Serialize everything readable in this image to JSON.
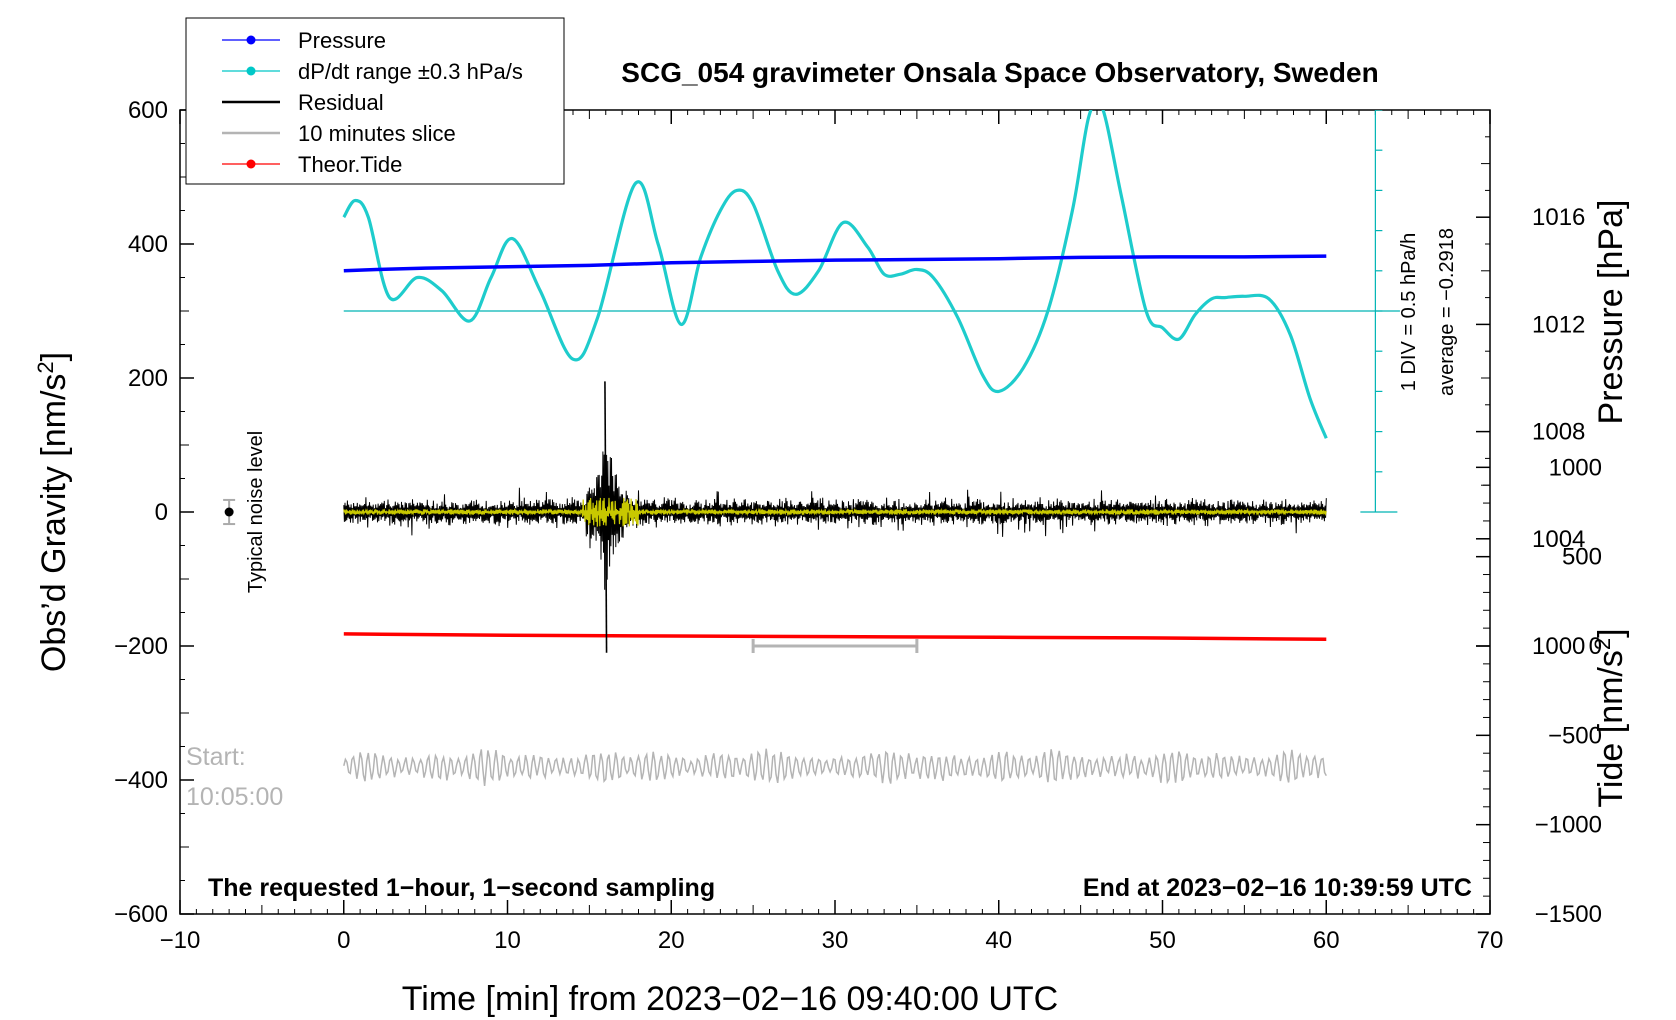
{
  "chart_data": {
    "type": "line",
    "title": "SCG_054 gravimeter Onsala Space Observatory, Sweden",
    "xlabel": "Time [min] from 2023−02−16 09:40:00 UTC",
    "xlim": [
      -10,
      70
    ],
    "xticks": [
      -10,
      0,
      10,
      20,
      30,
      40,
      50,
      60,
      70
    ],
    "xtick_labels": [
      "−10",
      "0",
      "10",
      "20",
      "30",
      "40",
      "50",
      "60",
      "70"
    ],
    "left_axis": {
      "label": "Obs’d Gravity [nm/s²]",
      "label_main": "Obs’d Gravity [nm/s",
      "label_sup": "2",
      "label_end": "]",
      "ylim": [
        -600,
        600
      ],
      "ticks": [
        -600,
        -400,
        -200,
        0,
        200,
        400,
        600
      ],
      "tick_labels": [
        "−600",
        "−400",
        "−200",
        "0",
        "200",
        "400",
        "600"
      ]
    },
    "right_axis_pressure": {
      "label": "Pressure [hPa]",
      "ylim": [
        990,
        1020
      ],
      "ticks": [
        1000,
        1004,
        1008,
        1012,
        1016
      ],
      "tick_labels": [
        "1000",
        "1004",
        "1008",
        "1012",
        "1016"
      ]
    },
    "right_axis_tide": {
      "label": "Tide [nm/s²]",
      "label_main": "Tide [nm/s",
      "label_sup": "2",
      "label_end": "]",
      "ylim": [
        -1500,
        3000
      ],
      "ticks": [
        -1500,
        -1000,
        -500,
        0,
        500,
        1000
      ],
      "tick_labels": [
        "−1500",
        "−1000",
        "−500",
        "0",
        "500",
        "1000"
      ]
    },
    "dpdt_scale": {
      "label": "1 DIV = 0.5 hPa/h",
      "average": "average = −0.2918",
      "zero_level_gravity": 300,
      "scale_min_gravity": 0,
      "scale_max_gravity": 600,
      "divisions": 10
    },
    "legend": {
      "position": "top-left",
      "entries": [
        {
          "label": "Pressure",
          "color": "#0000ff",
          "marker": true
        },
        {
          "label": "dP/dt range ±0.3 hPa/s",
          "color": "#00c8c8",
          "marker": true
        },
        {
          "label": "Residual",
          "color": "#000000",
          "marker": false
        },
        {
          "label": "10 minutes slice",
          "color": "#b4b4b4",
          "marker": false
        },
        {
          "label": "Theor.Tide",
          "color": "#ff0000",
          "marker": true
        }
      ]
    },
    "series": [
      {
        "name": "Pressure",
        "color": "#0000ff",
        "axis": "pressure",
        "x": [
          0,
          2,
          5,
          10,
          15,
          20,
          25,
          30,
          35,
          40,
          45,
          50,
          55,
          60
        ],
        "values": [
          1014.0,
          1014.05,
          1014.1,
          1014.15,
          1014.2,
          1014.3,
          1014.35,
          1014.4,
          1014.42,
          1014.45,
          1014.5,
          1014.52,
          1014.52,
          1014.55
        ]
      },
      {
        "name": "dP/dt",
        "color": "#00c8c8",
        "axis": "gravity",
        "x": [
          0,
          0.7,
          1.5,
          2.8,
          4.5,
          6.0,
          7.7,
          9.0,
          10.3,
          12.0,
          14.0,
          15.5,
          17.8,
          19.2,
          20.6,
          21.8,
          23.0,
          24.0,
          25.0,
          26.5,
          27.6,
          29.0,
          30.5,
          32.0,
          33.0,
          34.0,
          35.0,
          36.0,
          37.5,
          39.0,
          40.0,
          41.5,
          43.0,
          44.5,
          45.5,
          46.3,
          47.5,
          49.0,
          50.0,
          51.0,
          52.0,
          53.0,
          53.8,
          55.0,
          56.5,
          57.8,
          59.0,
          60.0
        ],
        "values": [
          440,
          465,
          440,
          320,
          350,
          330,
          285,
          350,
          408,
          330,
          228,
          290,
          490,
          400,
          280,
          380,
          450,
          480,
          460,
          360,
          325,
          360,
          432,
          395,
          355,
          355,
          362,
          350,
          290,
          205,
          180,
          215,
          300,
          450,
          590,
          605,
          470,
          300,
          275,
          258,
          295,
          318,
          320,
          322,
          318,
          265,
          170,
          110
        ]
      },
      {
        "name": "Residual",
        "color": "#000000",
        "axis": "gravity",
        "summary": {
          "baseline": 0,
          "noise_amplitude": 20,
          "event_time_min": 16,
          "event_max": 195,
          "event_min": -210
        }
      },
      {
        "name": "Theor.Tide",
        "color": "#ff0000",
        "axis": "gravity",
        "x": [
          0,
          10,
          20,
          30,
          40,
          50,
          60
        ],
        "values": [
          -182,
          -184,
          -185,
          -186,
          -187,
          -188,
          -190
        ]
      },
      {
        "name": "10 minutes slice",
        "color": "#b4b4b4",
        "axis": "gravity",
        "summary": {
          "baseline": -380,
          "amplitude": 25
        }
      }
    ],
    "slice_marker": {
      "x_start": 25,
      "x_end": 35,
      "y": -200
    },
    "noise_level": {
      "x": -7,
      "y": 0,
      "error": 18,
      "label": "Typical noise level"
    },
    "annotations": {
      "start_label": "Start:",
      "start_time": "10:05:00",
      "bottom_left": "The requested 1−hour, 1−second sampling",
      "bottom_right": "End at 2023−02−16 10:39:59 UTC"
    }
  }
}
